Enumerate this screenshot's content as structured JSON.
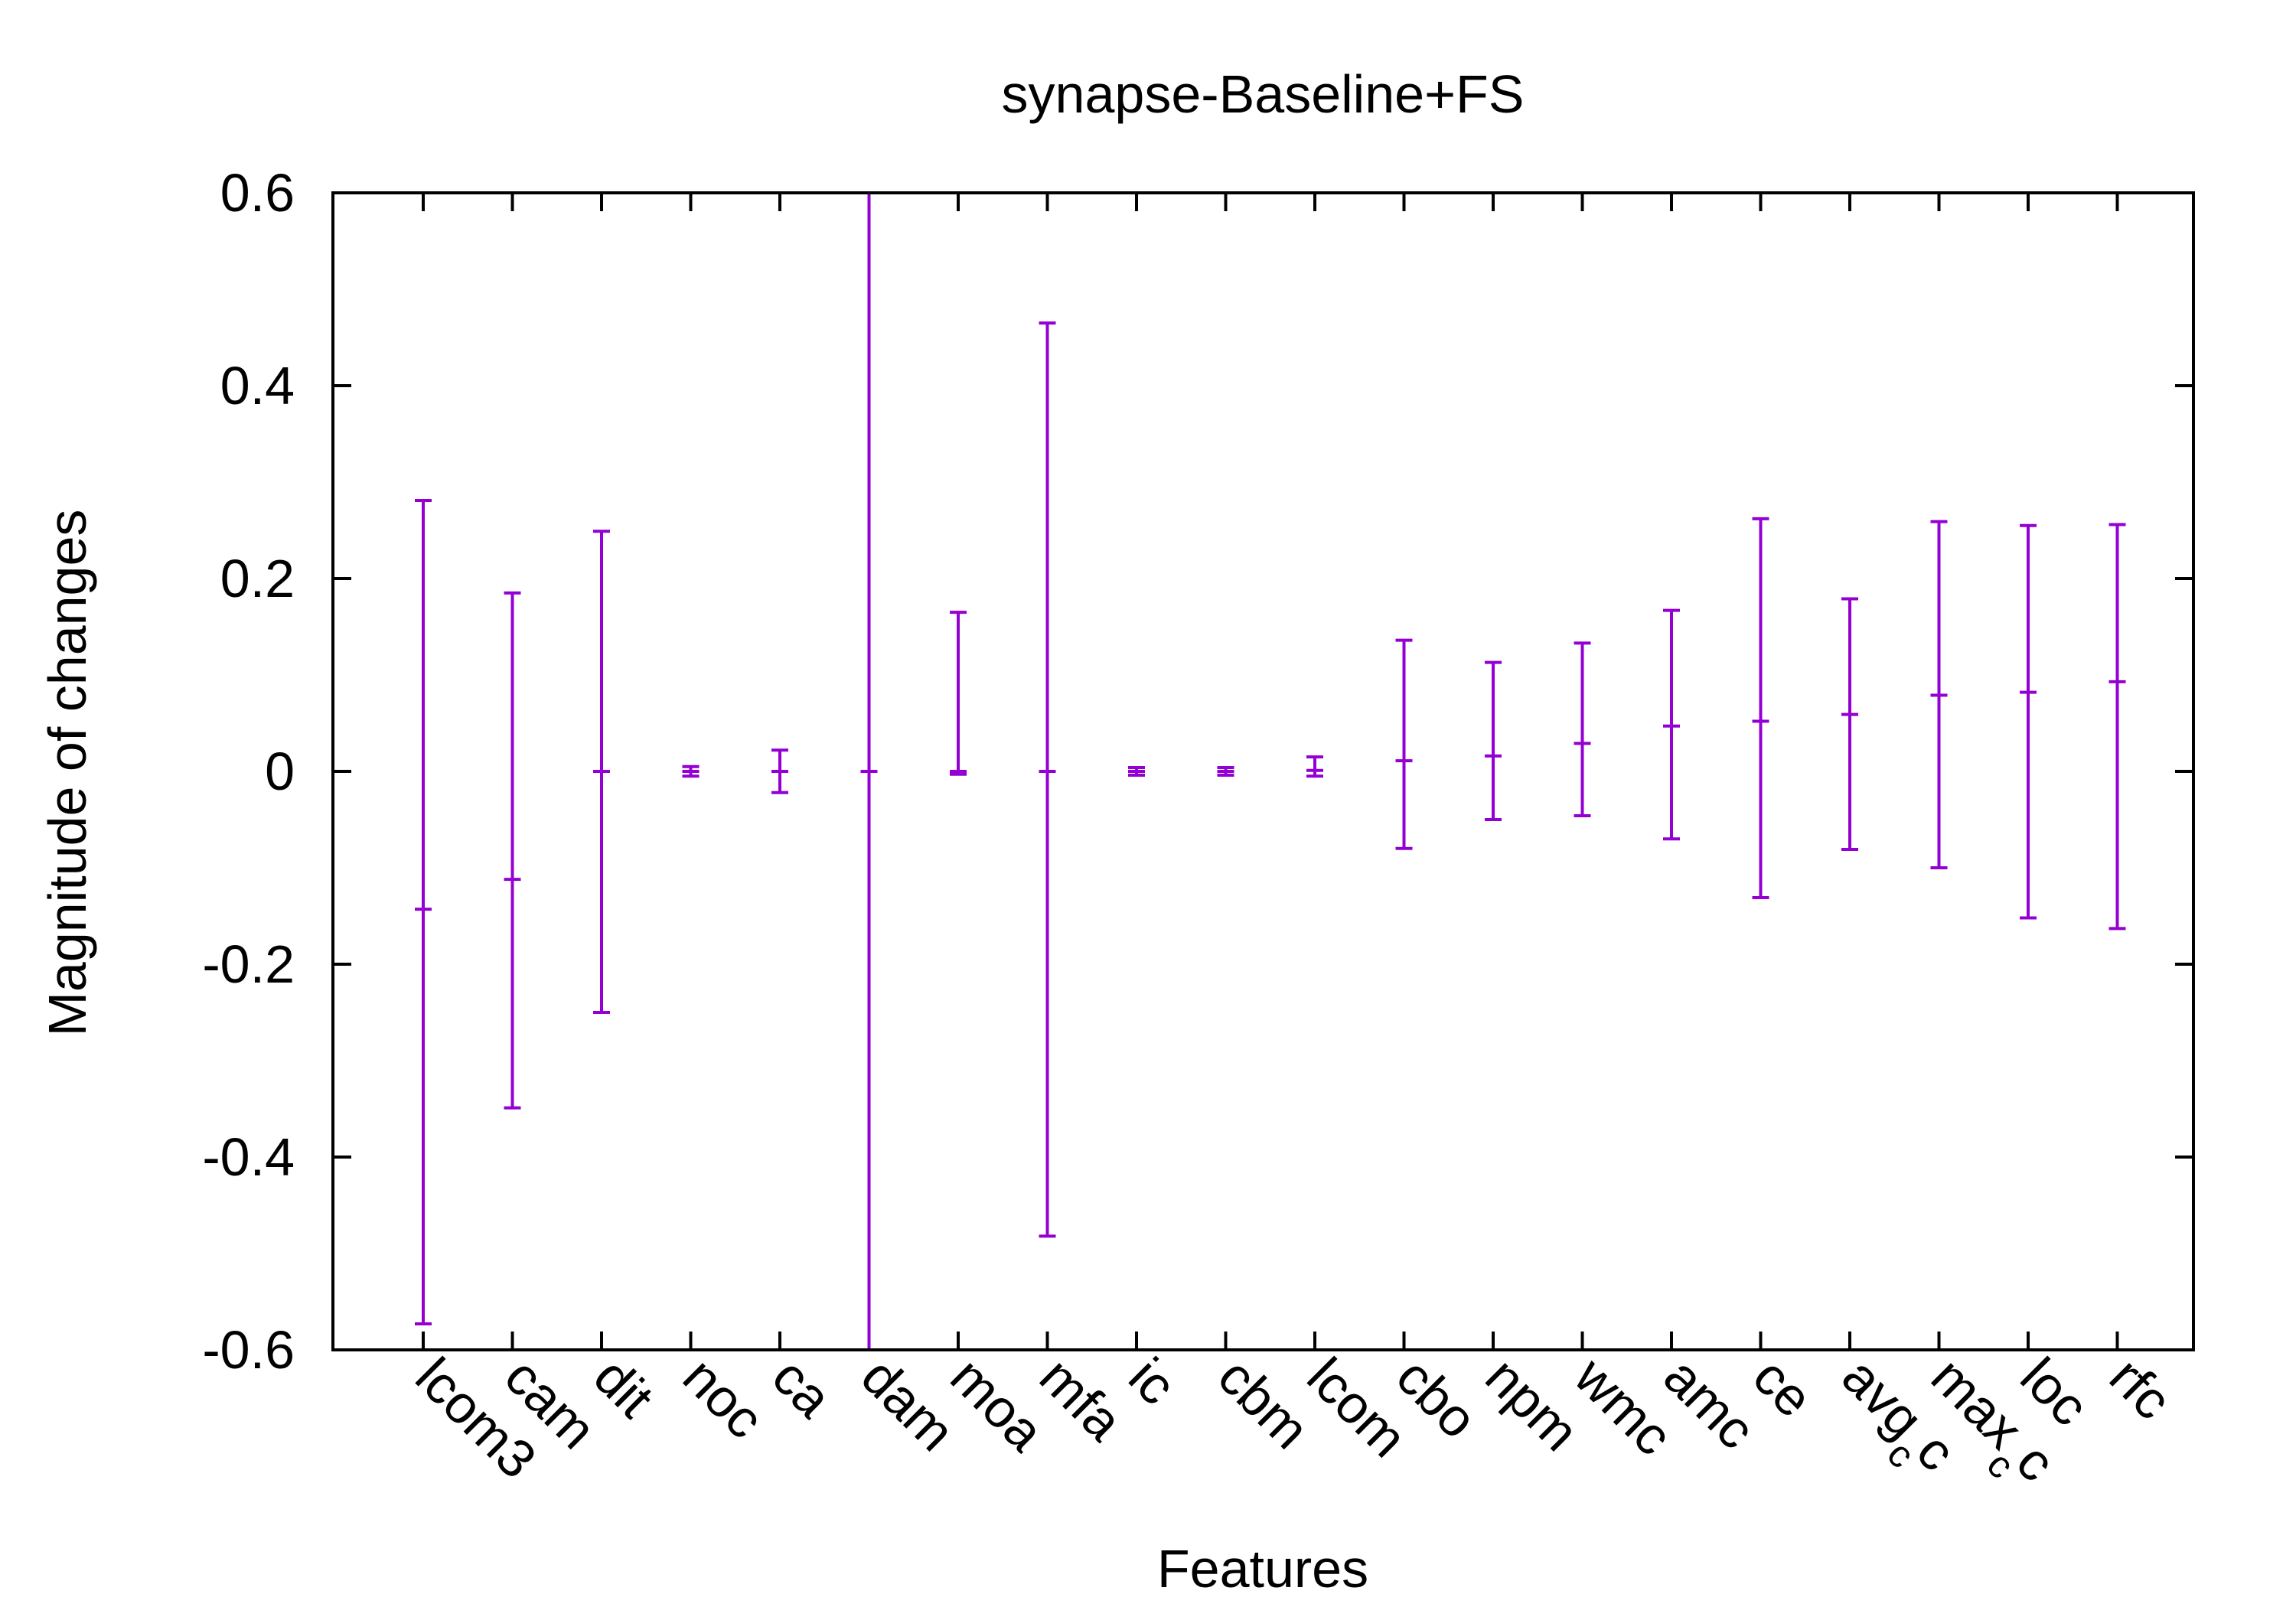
{
  "chart_data": {
    "type": "errorbar",
    "title": "synapse-Baseline+FS",
    "xlabel": "Features",
    "ylabel": "Magnitude of changes",
    "ylim": [
      -0.6,
      0.6
    ],
    "yticks": [
      -0.6,
      -0.4,
      -0.2,
      0,
      0.2,
      0.4,
      0.6
    ],
    "ytick_labels": [
      "-0.6",
      "-0.4",
      "-0.2",
      "0",
      "0.2",
      "0.4",
      "0.6"
    ],
    "grid": false,
    "legend": "none",
    "color": "#9400d3",
    "categories": [
      "lcom3",
      "cam",
      "dit",
      "noc",
      "ca",
      "dam",
      "moa",
      "mfa",
      "ic",
      "cbm",
      "lcom",
      "cbo",
      "npm",
      "wmc",
      "amc",
      "ce",
      "avg_cc",
      "max_cc",
      "loc",
      "rfc"
    ],
    "points": [
      {
        "feature": "lcom3",
        "median": -0.143,
        "low": -0.573,
        "high": 0.281
      },
      {
        "feature": "cam",
        "median": -0.112,
        "low": -0.349,
        "high": 0.185
      },
      {
        "feature": "dit",
        "median": 0.0,
        "low": -0.25,
        "high": 0.249
      },
      {
        "feature": "noc",
        "median": 0.0,
        "low": -0.005,
        "high": 0.005
      },
      {
        "feature": "ca",
        "median": 0.0,
        "low": -0.022,
        "high": 0.022
      },
      {
        "feature": "dam",
        "median": 0.0,
        "low": -0.6,
        "high": 0.6
      },
      {
        "feature": "moa",
        "median": 0.0,
        "low": -0.003,
        "high": 0.165
      },
      {
        "feature": "mfa",
        "median": 0.0,
        "low": -0.482,
        "high": 0.465
      },
      {
        "feature": "ic",
        "median": 0.0,
        "low": -0.004,
        "high": 0.004
      },
      {
        "feature": "cbm",
        "median": 0.0,
        "low": -0.004,
        "high": 0.004
      },
      {
        "feature": "lcom",
        "median": 0.001,
        "low": -0.005,
        "high": 0.015
      },
      {
        "feature": "cbo",
        "median": 0.011,
        "low": -0.08,
        "high": 0.136
      },
      {
        "feature": "npm",
        "median": 0.016,
        "low": -0.05,
        "high": 0.113
      },
      {
        "feature": "wmc",
        "median": 0.029,
        "low": -0.046,
        "high": 0.133
      },
      {
        "feature": "amc",
        "median": 0.047,
        "low": -0.07,
        "high": 0.167
      },
      {
        "feature": "ce",
        "median": 0.052,
        "low": -0.131,
        "high": 0.262
      },
      {
        "feature": "avg_cc",
        "median": 0.059,
        "low": -0.081,
        "high": 0.179
      },
      {
        "feature": "max_cc",
        "median": 0.079,
        "low": -0.1,
        "high": 0.259
      },
      {
        "feature": "loc",
        "median": 0.082,
        "low": -0.152,
        "high": 0.255
      },
      {
        "feature": "rfc",
        "median": 0.093,
        "low": -0.163,
        "high": 0.256
      }
    ]
  }
}
